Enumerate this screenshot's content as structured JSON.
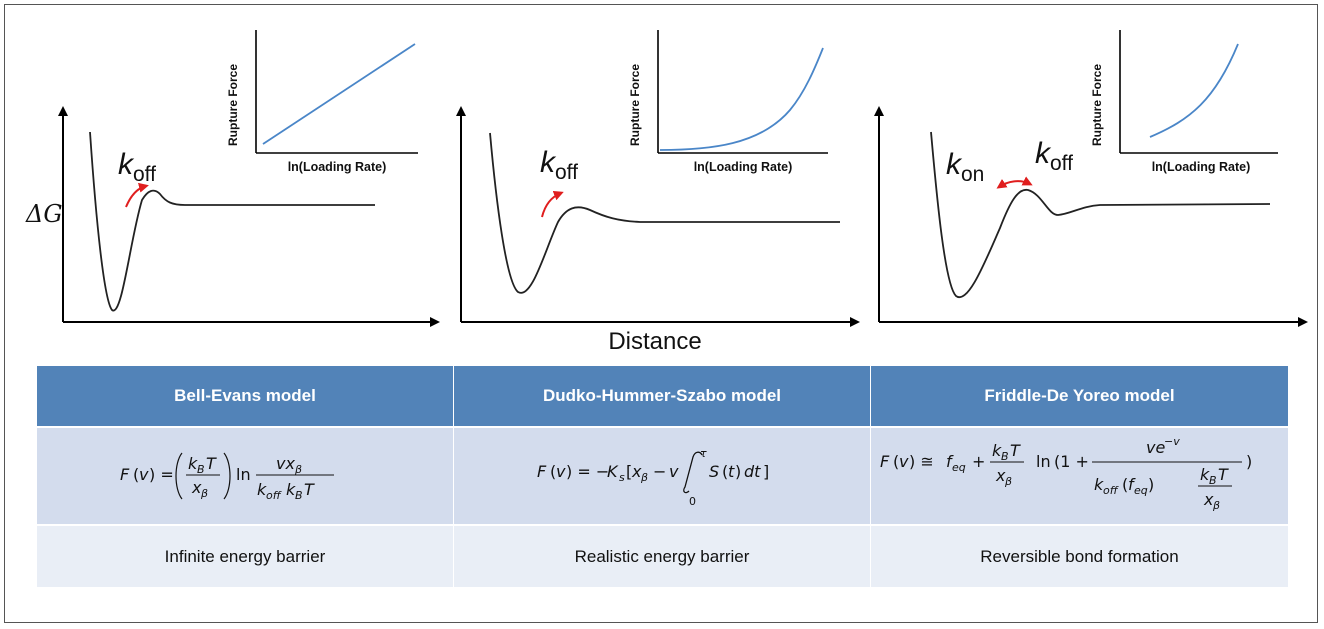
{
  "figure": {
    "x_axis_label": "Distance",
    "y_axis_label": "ΔG",
    "panels": [
      {
        "rates": [
          {
            "base": "k",
            "sub": "off"
          }
        ],
        "inset": {
          "ylabel": "Rupture Force",
          "xlabel": "ln(Loading Rate)",
          "curve_shape": "linear"
        }
      },
      {
        "rates": [
          {
            "base": "k",
            "sub": "off"
          }
        ],
        "inset": {
          "ylabel": "Rupture Force",
          "xlabel": "ln(Loading Rate)",
          "curve_shape": "convex-steep"
        }
      },
      {
        "rates": [
          {
            "base": "k",
            "sub": "on"
          },
          {
            "base": "k",
            "sub": "off"
          }
        ],
        "inset": {
          "ylabel": "Rupture Force",
          "xlabel": "ln(Loading Rate)",
          "curve_shape": "convex-mild"
        }
      }
    ]
  },
  "table": {
    "columns": [
      {
        "header": "Bell-Evans model",
        "description": "Infinite energy barrier"
      },
      {
        "header": "Dudko-Hummer-Szabo model",
        "description": "Realistic energy barrier"
      },
      {
        "header": "Friddle-De Yoreo model",
        "description": "Reversible bond formation"
      }
    ]
  },
  "colors": {
    "header_bg": "#5283b8",
    "formula_bg": "#d3dced",
    "description_bg": "#e9eef6",
    "inset_curve": "#4a86c8",
    "arrow": "#e01e1e",
    "energy_curve": "#222222"
  }
}
